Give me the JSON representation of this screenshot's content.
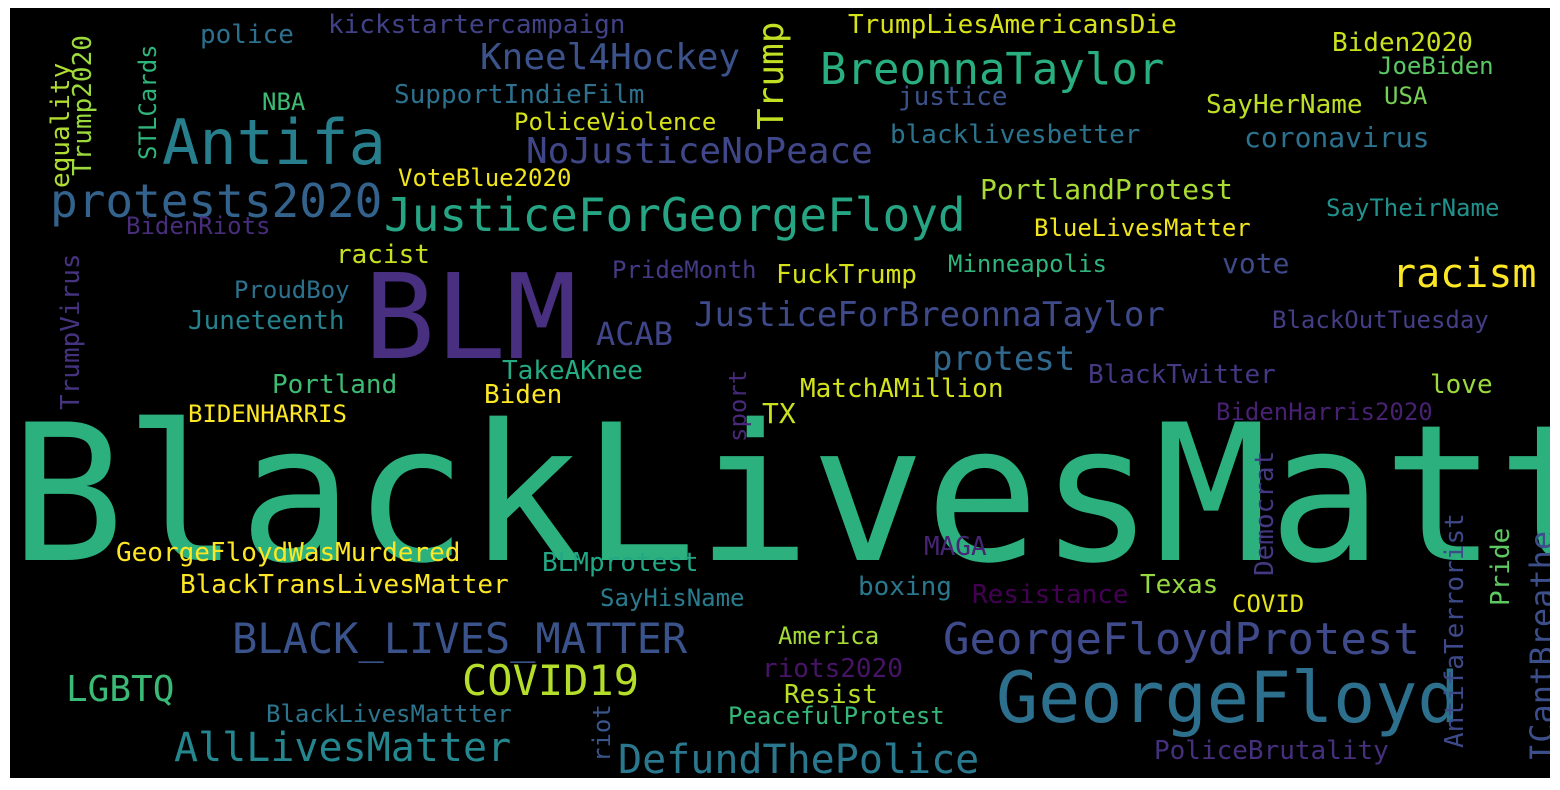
{
  "cloud": {
    "background": "#000000",
    "colormap": "viridis",
    "words": [
      {
        "text": "BlackLivesMatter",
        "color": "#2cb17e"
      },
      {
        "text": "BLM",
        "color": "#482f7f"
      },
      {
        "text": "GeorgeFloyd",
        "color": "#2d708e"
      },
      {
        "text": "Antifa",
        "color": "#277f8e"
      },
      {
        "text": "JusticeForGeorgeFloyd",
        "color": "#26a584"
      },
      {
        "text": "protests2020",
        "color": "#33638d"
      },
      {
        "text": "BreonnaTaylor",
        "color": "#29af7f"
      },
      {
        "text": "GeorgeFloydProtest",
        "color": "#3e4a89"
      },
      {
        "text": "BLACK_LIVES_MATTER",
        "color": "#3a538b"
      },
      {
        "text": "COVID19",
        "color": "#b5de2b"
      },
      {
        "text": "AllLivesMatter",
        "color": "#24868e"
      },
      {
        "text": "DefundThePolice",
        "color": "#2a788e"
      },
      {
        "text": "racism",
        "color": "#fde725"
      },
      {
        "text": "Kneel4Hockey",
        "color": "#3b528b"
      },
      {
        "text": "NoJusticeNoPeace",
        "color": "#3f4788"
      },
      {
        "text": "JusticeForBreonnaTaylor",
        "color": "#3e4a89"
      },
      {
        "text": "protest",
        "color": "#31688e"
      },
      {
        "text": "LGBTQ",
        "color": "#3aba76"
      },
      {
        "text": "Trump",
        "color": "#c2df23"
      },
      {
        "text": "ACAB",
        "color": "#404588"
      },
      {
        "text": "coronavirus",
        "color": "#2c728e"
      },
      {
        "text": "PortlandProtest",
        "color": "#a8db34"
      },
      {
        "text": "ICantBreathe",
        "color": "#3c4f8a"
      },
      {
        "text": "kickstartercampaign",
        "color": "#414287"
      },
      {
        "text": "TrumpLiesAmericansDie",
        "color": "#d8e219"
      },
      {
        "text": "Biden2020",
        "color": "#cae11f"
      },
      {
        "text": "JoeBiden",
        "color": "#5ac864"
      },
      {
        "text": "USA",
        "color": "#75d054"
      },
      {
        "text": "SayHerName",
        "color": "#bddf26"
      },
      {
        "text": "justice",
        "color": "#3b528b"
      },
      {
        "text": "blacklivesbetter",
        "color": "#2c738e"
      },
      {
        "text": "SupportIndieFilm",
        "color": "#2d718e"
      },
      {
        "text": "police",
        "color": "#2d708e"
      },
      {
        "text": "NBA",
        "color": "#3dbc74"
      },
      {
        "text": "PoliceViolence",
        "color": "#d5e21a"
      },
      {
        "text": "VoteBlue2020",
        "color": "#f1e51d"
      },
      {
        "text": "equality",
        "color": "#b0dd2f"
      },
      {
        "text": "Trump2020",
        "color": "#9bd93c"
      },
      {
        "text": "STLCards",
        "color": "#2fb47c"
      },
      {
        "text": "BidenRiots",
        "color": "#472d7b"
      },
      {
        "text": "TrumpVirus",
        "color": "#46337f"
      },
      {
        "text": "SayTheirName",
        "color": "#21918c"
      },
      {
        "text": "BlueLivesMatter",
        "color": "#f1e51d"
      },
      {
        "text": "racist",
        "color": "#c8e020"
      },
      {
        "text": "PrideMonth",
        "color": "#443a83"
      },
      {
        "text": "FuckTrump",
        "color": "#d5e21a"
      },
      {
        "text": "Minneapolis",
        "color": "#2fb47c"
      },
      {
        "text": "vote",
        "color": "#3e4989"
      },
      {
        "text": "ProudBoy",
        "color": "#2c728e"
      },
      {
        "text": "Juneteenth",
        "color": "#26828e"
      },
      {
        "text": "BlackOutTuesday",
        "color": "#433e85"
      },
      {
        "text": "TakeAKnee",
        "color": "#25ab82"
      },
      {
        "text": "Portland",
        "color": "#3dbc74"
      },
      {
        "text": "BIDENHARRIS",
        "color": "#fde725"
      },
      {
        "text": "Biden",
        "color": "#fde725"
      },
      {
        "text": "sport",
        "color": "#482979"
      },
      {
        "text": "TX",
        "color": "#cae11f"
      },
      {
        "text": "MatchAMillion",
        "color": "#d2e21b"
      },
      {
        "text": "BlackTwitter",
        "color": "#443983"
      },
      {
        "text": "love",
        "color": "#9bd93c"
      },
      {
        "text": "BidenHarris2020",
        "color": "#482173"
      },
      {
        "text": "Democrat",
        "color": "#453882"
      },
      {
        "text": "AntifaTerrorist",
        "color": "#3e4989"
      },
      {
        "text": "Pride",
        "color": "#5ec962"
      },
      {
        "text": "GeorgeFloydWasMurdered",
        "color": "#fde725"
      },
      {
        "text": "BlackTransLivesMatter",
        "color": "#fde725"
      },
      {
        "text": "BLMprotest",
        "color": "#22a785"
      },
      {
        "text": "MAGA",
        "color": "#482475"
      },
      {
        "text": "SayHisName",
        "color": "#287c8e"
      },
      {
        "text": "boxing",
        "color": "#2a788e"
      },
      {
        "text": "Resistance",
        "color": "#440154"
      },
      {
        "text": "Texas",
        "color": "#95d840"
      },
      {
        "text": "COVID",
        "color": "#e5e419"
      },
      {
        "text": "America",
        "color": "#a5db36"
      },
      {
        "text": "riots2020",
        "color": "#481467"
      },
      {
        "text": "Resist",
        "color": "#b8de29"
      },
      {
        "text": "BlackLivesMattter",
        "color": "#2b758e"
      },
      {
        "text": "riot",
        "color": "#39568c"
      },
      {
        "text": "PeacefulProtest",
        "color": "#35b779"
      },
      {
        "text": "PoliceBrutality",
        "color": "#46307e"
      }
    ]
  }
}
